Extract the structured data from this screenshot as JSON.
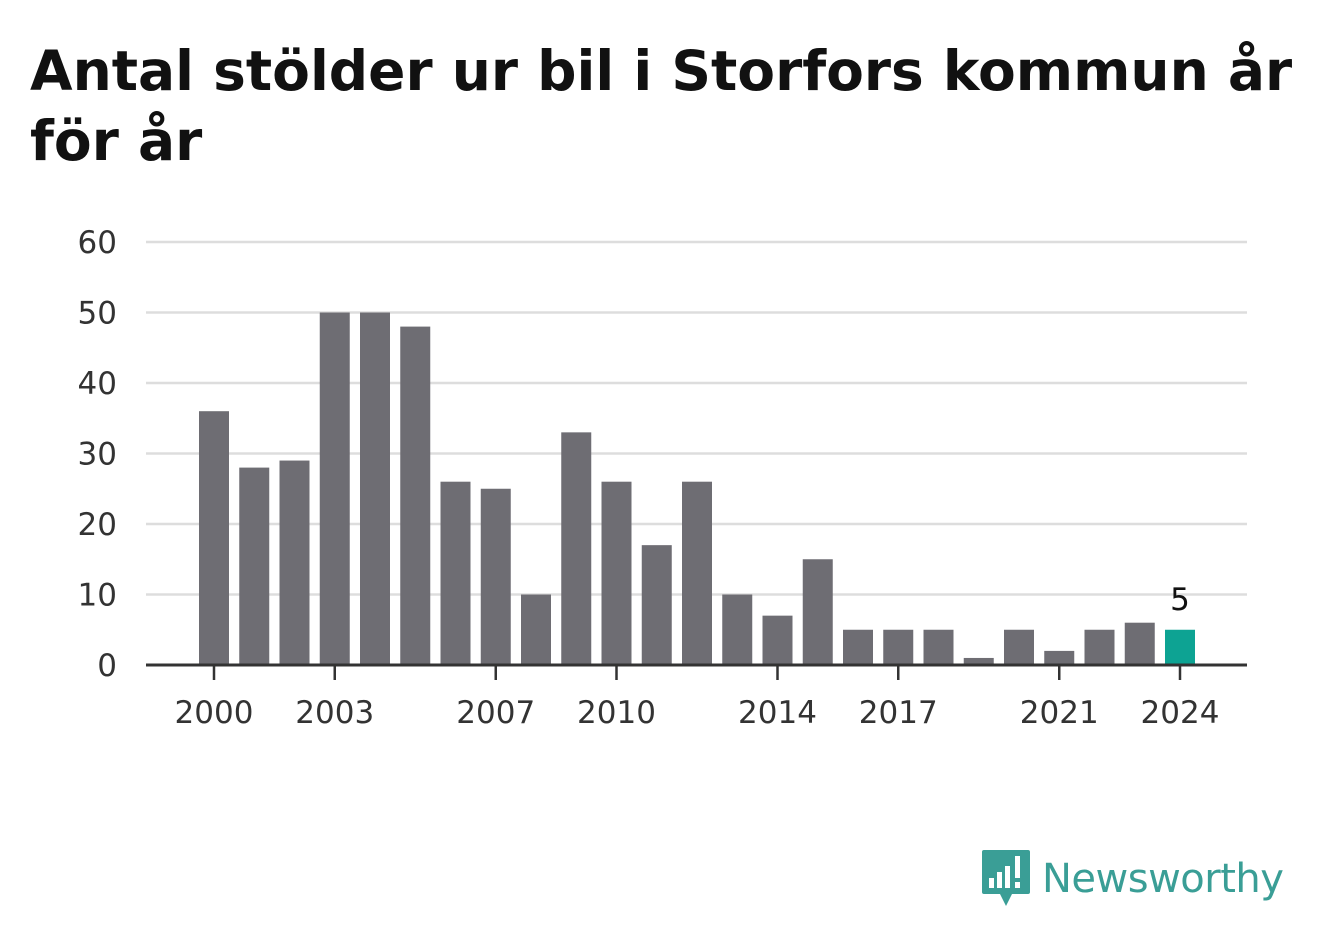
{
  "title": "Antal stölder ur bil i Storfors kommun år för år",
  "brand": {
    "name": "Newsworthy",
    "color": "#3a9e96"
  },
  "colors": {
    "bar": "#6e6d73",
    "highlight": "#0da393",
    "grid": "#dddddd",
    "axis": "#333333"
  },
  "chart_data": {
    "type": "bar",
    "x": [
      2000,
      2001,
      2002,
      2003,
      2004,
      2005,
      2006,
      2007,
      2008,
      2009,
      2010,
      2011,
      2012,
      2013,
      2014,
      2015,
      2016,
      2017,
      2018,
      2019,
      2020,
      2021,
      2022,
      2023,
      2024
    ],
    "values": [
      36,
      28,
      29,
      50,
      50,
      48,
      26,
      25,
      10,
      33,
      26,
      17,
      26,
      10,
      7,
      15,
      5,
      5,
      5,
      1,
      5,
      2,
      5,
      6,
      5
    ],
    "x_tick_labels": [
      "2000",
      "2003",
      "2007",
      "2010",
      "2014",
      "2017",
      "2021",
      "2024"
    ],
    "y_ticks": [
      0,
      10,
      20,
      30,
      40,
      50,
      60
    ],
    "ylim": [
      0,
      60
    ],
    "highlight": {
      "x": 2024,
      "label": "5"
    },
    "xlabel": "",
    "ylabel": "",
    "grid": true
  }
}
